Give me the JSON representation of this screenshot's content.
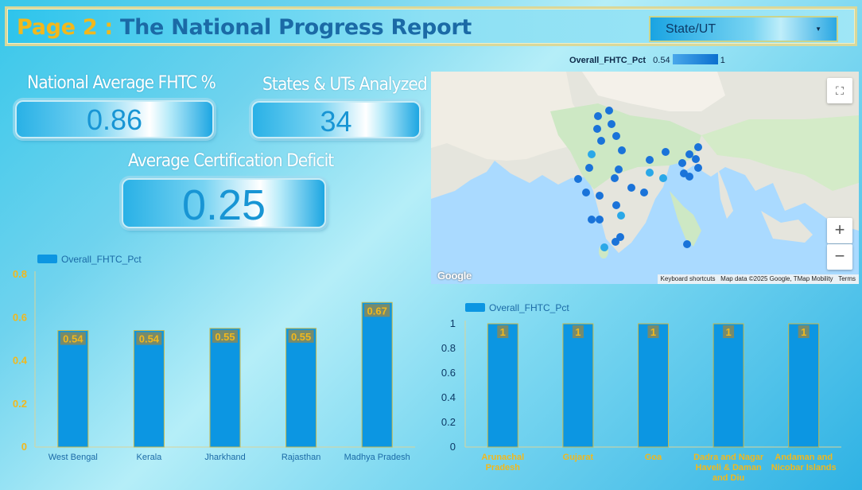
{
  "header": {
    "page_label": "Page 2 :",
    "title": "The National Progress Report",
    "state_select": {
      "selected": "State/UT"
    }
  },
  "kpis": {
    "national_avg": {
      "label": "National Average FHTC %",
      "value": "0.86"
    },
    "states_analyzed": {
      "label": "States & UTs Analyzed",
      "value": "34"
    },
    "cert_deficit": {
      "label": "Average Certification Deficit",
      "value": "0.25"
    }
  },
  "map": {
    "legend_title": "Overall_FHTC_Pct",
    "legend_min": "0.54",
    "legend_max": "1",
    "zoom_in": "+",
    "zoom_out": "−",
    "google_logo": "Google",
    "keyboard_shortcuts": "Keyboard shortcuts",
    "map_data": "Map data ©2025 Google, TMap Mobility",
    "terms": "Terms",
    "icons": {
      "fullscreen": "fullscreen-icon"
    }
  },
  "colors": {
    "bar": "#0c96e2",
    "bar_outline": "#c8b84a",
    "label_gold": "#f2b81c",
    "title_blue": "#1b6aa6"
  },
  "chart_data": [
    {
      "type": "bar",
      "categories": [
        "West Bengal",
        "Kerala",
        "Jharkhand",
        "Rajasthan",
        "Madhya Pradesh"
      ],
      "series": [
        {
          "name": "Overall_FHTC_Pct",
          "values": [
            0.54,
            0.54,
            0.55,
            0.55,
            0.67
          ]
        }
      ],
      "data_labels": [
        "0.54",
        "0.54",
        "0.55",
        "0.55",
        "0.67"
      ],
      "yticks": [
        "0",
        "0.2",
        "0.4",
        "0.6",
        "0.8"
      ],
      "ylim": [
        0,
        0.8
      ],
      "legend": "top-left",
      "grid": false
    },
    {
      "type": "bar",
      "categories": [
        [
          "Arunachal",
          "Pradesh"
        ],
        [
          "Gujarat"
        ],
        [
          "Goa"
        ],
        [
          "Dadra and Nagar",
          "Haveli & Daman",
          "and Diu"
        ],
        [
          "Andaman and",
          "Nicobar Islands"
        ]
      ],
      "series": [
        {
          "name": "Overall_FHTC_Pct",
          "values": [
            1,
            1,
            1,
            1,
            1
          ]
        }
      ],
      "data_labels": [
        "1",
        "1",
        "1",
        "1",
        "1"
      ],
      "yticks": [
        "0",
        "0.2",
        "0.4",
        "0.6",
        "0.8",
        "1"
      ],
      "ylim": [
        0,
        1
      ],
      "legend": "top-left",
      "grid": false
    }
  ]
}
